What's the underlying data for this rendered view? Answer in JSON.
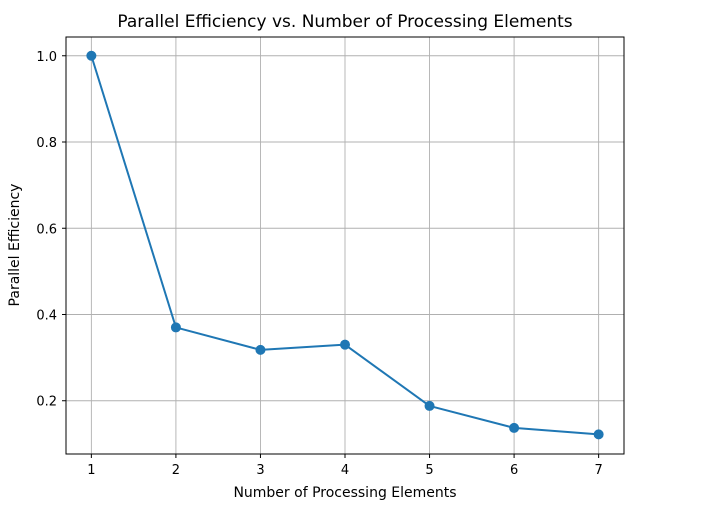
{
  "chart_data": {
    "type": "line",
    "title": "Parallel Efficiency vs. Number of Processing Elements",
    "xlabel": "Number of Processing Elements",
    "ylabel": "Parallel Efficiency",
    "x": [
      1,
      2,
      3,
      4,
      5,
      6,
      7
    ],
    "series": [
      {
        "values": [
          1.0,
          0.37,
          0.318,
          0.33,
          0.188,
          0.137,
          0.122
        ],
        "color": "#1f77b4",
        "marker": "circle"
      }
    ],
    "xticks": [
      "1",
      "2",
      "3",
      "4",
      "5",
      "6",
      "7"
    ],
    "yticks": [
      "0.2",
      "0.4",
      "0.6",
      "0.8",
      "1.0"
    ],
    "xlim": [
      0.7,
      7.3
    ],
    "ylim": [
      0.0765,
      1.0435
    ],
    "grid": true
  }
}
